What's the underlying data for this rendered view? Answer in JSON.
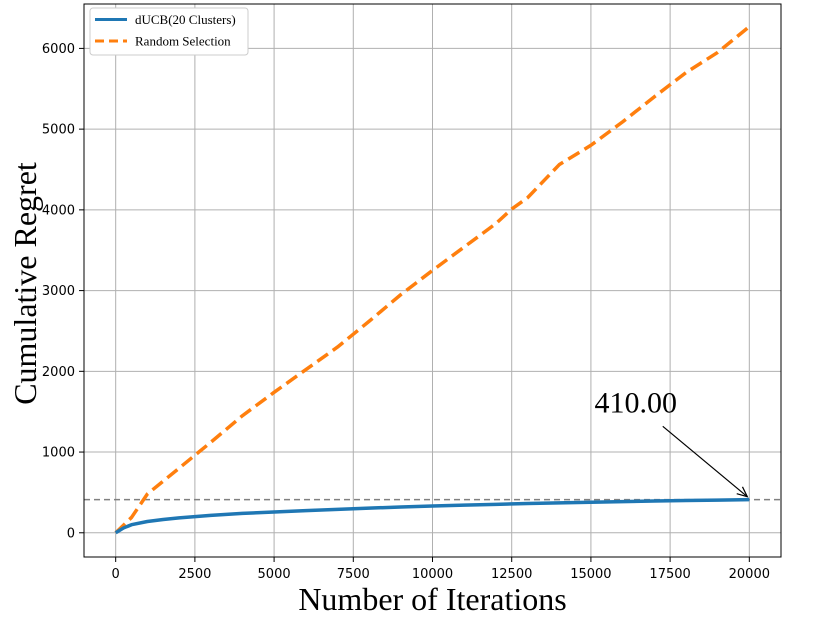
{
  "chart_data": {
    "type": "line",
    "title": "",
    "xlabel": "Number of Iterations",
    "ylabel": "Cumulative Regret",
    "xlim": [
      -1000,
      21000
    ],
    "ylim": [
      -300,
      6550
    ],
    "xticks": [
      0,
      2500,
      5000,
      7500,
      10000,
      12500,
      15000,
      17500,
      20000
    ],
    "yticks": [
      0,
      1000,
      2000,
      3000,
      4000,
      5000,
      6000
    ],
    "grid": true,
    "legend_position": "top-left",
    "series": [
      {
        "name": "dUCB(20 Clusters)",
        "style": "solid",
        "color": "#1f77b4",
        "x": [
          0,
          250,
          500,
          1000,
          1500,
          2000,
          2500,
          3000,
          4000,
          5000,
          6000,
          7000,
          8000,
          9000,
          10000,
          11000,
          12000,
          13000,
          14000,
          15000,
          16000,
          17000,
          18000,
          19000,
          20000
        ],
        "y": [
          0,
          60,
          100,
          140,
          165,
          185,
          200,
          215,
          240,
          258,
          275,
          290,
          305,
          320,
          332,
          343,
          352,
          362,
          370,
          378,
          386,
          393,
          400,
          405,
          410
        ]
      },
      {
        "name": "Random Selection",
        "style": "dashed",
        "color": "#ff7f0e",
        "x": [
          0,
          500,
          1000,
          2000,
          3000,
          4000,
          5000,
          6000,
          7000,
          8000,
          9000,
          10000,
          11000,
          12000,
          12500,
          13000,
          14000,
          15000,
          16000,
          17000,
          18000,
          19000,
          20000
        ],
        "y": [
          0,
          190,
          480,
          800,
          1120,
          1450,
          1740,
          2020,
          2300,
          2620,
          2950,
          3250,
          3540,
          3830,
          4010,
          4150,
          4560,
          4800,
          5090,
          5400,
          5700,
          5950,
          6270
        ]
      }
    ],
    "reference_line": {
      "y": 410,
      "style": "dashed",
      "color": "#808080"
    },
    "annotation": {
      "text": "410.00",
      "x": 20000,
      "y": 410,
      "text_x": 16700,
      "text_y": 1430
    }
  }
}
